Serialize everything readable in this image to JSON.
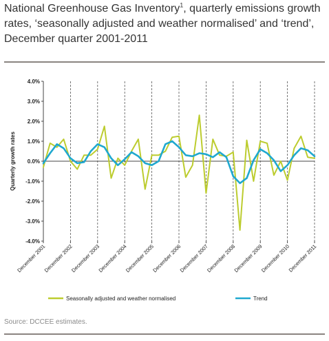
{
  "title_main": "National Greenhouse Gas Inventory",
  "title_sup": "1",
  "title_rest": ", quarterly emissions growth rates, ‘seasonally adjusted and weather normalised’ and ‘trend’, December quarter 2001-2011",
  "source": "Source: DCCEE estimates.",
  "colors": {
    "seasonal": "#bccc2e",
    "trend": "#1fa8cf",
    "rule": "#8a8480"
  },
  "chart_data": {
    "type": "line",
    "title": "National Greenhouse Gas Inventory¹, quarterly emissions growth rates, ‘seasonally adjusted and weather normalised’ and ‘trend’, December quarter 2001-2011",
    "xlabel": "",
    "ylabel": "Quarterly growth rates",
    "ylim": [
      -4.0,
      4.0
    ],
    "yticks": [
      4.0,
      3.0,
      2.0,
      1.0,
      0.0,
      -1.0,
      -2.0,
      -3.0,
      -4.0
    ],
    "ytick_labels": [
      "4.0%",
      "3.0%",
      "2.0%",
      "1.0%",
      "0.0%",
      "-1.0%",
      "-2.0%",
      "-3.0%",
      "-4.0%"
    ],
    "x_tick_labels": [
      "December 2001",
      "December 2002",
      "December 2003",
      "December 2004",
      "December 2005",
      "December 2006",
      "December 2007",
      "December 2008",
      "December 2009",
      "December 2010",
      "December 2011"
    ],
    "grid": "dashed vertical lines at December quarters",
    "legend_position": "bottom",
    "series": [
      {
        "name": "Seasonally adjusted and weather normalised",
        "values": [
          -0.3,
          0.9,
          0.7,
          1.1,
          0.0,
          -0.4,
          0.3,
          0.3,
          0.6,
          1.75,
          -0.85,
          0.15,
          -0.2,
          0.5,
          1.1,
          -1.4,
          0.3,
          0.3,
          0.5,
          1.2,
          1.25,
          -0.8,
          -0.2,
          2.3,
          -1.6,
          1.1,
          0.3,
          0.25,
          0.45,
          -3.45,
          1.05,
          -1.0,
          1.0,
          0.9,
          -0.7,
          0.0,
          -0.95,
          0.65,
          1.25,
          0.2,
          0.15
        ]
      },
      {
        "name": "Trend",
        "values": [
          -0.1,
          0.4,
          0.85,
          0.65,
          0.15,
          -0.1,
          -0.05,
          0.5,
          0.85,
          0.7,
          0.15,
          -0.2,
          0.1,
          0.45,
          0.25,
          -0.1,
          -0.2,
          0.0,
          0.85,
          1.0,
          0.7,
          0.3,
          0.25,
          0.4,
          0.35,
          0.2,
          0.45,
          0.2,
          -0.75,
          -1.1,
          -0.85,
          0.05,
          0.6,
          0.4,
          0.05,
          -0.5,
          -0.2,
          0.3,
          0.65,
          0.55,
          0.25
        ]
      }
    ]
  }
}
